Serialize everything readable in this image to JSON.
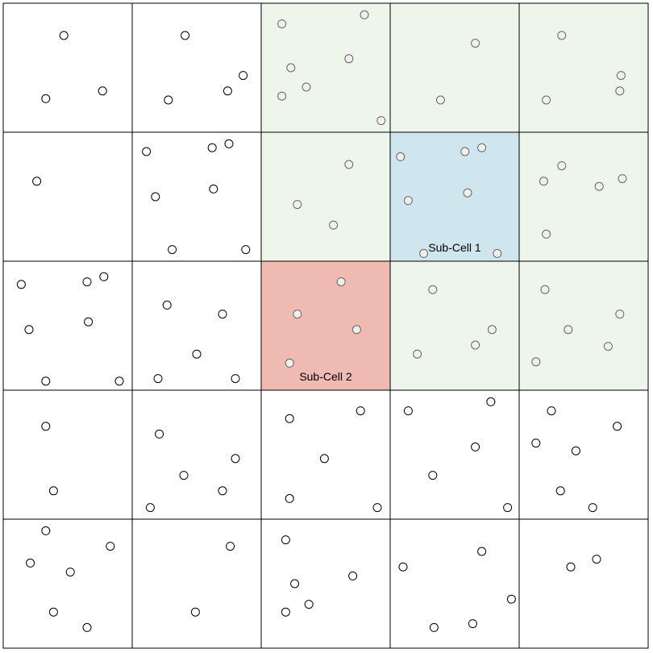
{
  "grid": {
    "rows": 5,
    "cols": 5,
    "cells": [
      {
        "row": 0,
        "col": 0,
        "shade": "none",
        "label": "",
        "points": [
          [
            0.47,
            0.25
          ],
          [
            0.33,
            0.74
          ],
          [
            0.77,
            0.68
          ]
        ]
      },
      {
        "row": 0,
        "col": 1,
        "shade": "none",
        "label": "",
        "points": [
          [
            0.41,
            0.25
          ],
          [
            0.28,
            0.75
          ],
          [
            0.74,
            0.68
          ],
          [
            0.86,
            0.56
          ]
        ]
      },
      {
        "row": 0,
        "col": 2,
        "shade": "neighbor",
        "label": "",
        "points": [
          [
            0.16,
            0.16
          ],
          [
            0.8,
            0.09
          ],
          [
            0.23,
            0.5
          ],
          [
            0.68,
            0.43
          ],
          [
            0.35,
            0.65
          ],
          [
            0.16,
            0.72
          ],
          [
            0.93,
            0.91
          ]
        ]
      },
      {
        "row": 0,
        "col": 3,
        "shade": "neighbor",
        "label": "",
        "points": [
          [
            0.66,
            0.31
          ],
          [
            0.39,
            0.75
          ]
        ]
      },
      {
        "row": 0,
        "col": 4,
        "shade": "neighbor",
        "label": "",
        "points": [
          [
            0.33,
            0.25
          ],
          [
            0.78,
            0.68
          ],
          [
            0.21,
            0.75
          ],
          [
            0.79,
            0.56
          ]
        ]
      },
      {
        "row": 1,
        "col": 0,
        "shade": "none",
        "label": "",
        "points": [
          [
            0.26,
            0.38
          ]
        ]
      },
      {
        "row": 1,
        "col": 1,
        "shade": "none",
        "label": "",
        "points": [
          [
            0.11,
            0.15
          ],
          [
            0.62,
            0.12
          ],
          [
            0.75,
            0.09
          ],
          [
            0.18,
            0.5
          ],
          [
            0.63,
            0.44
          ],
          [
            0.31,
            0.91
          ],
          [
            0.88,
            0.91
          ]
        ]
      },
      {
        "row": 1,
        "col": 2,
        "shade": "neighbor",
        "label": "",
        "points": [
          [
            0.68,
            0.25
          ],
          [
            0.28,
            0.56
          ],
          [
            0.56,
            0.72
          ]
        ]
      },
      {
        "row": 1,
        "col": 3,
        "shade": "subcell1",
        "label": "Sub-Cell 1",
        "points": [
          [
            0.08,
            0.19
          ],
          [
            0.58,
            0.15
          ],
          [
            0.71,
            0.12
          ],
          [
            0.14,
            0.53
          ],
          [
            0.6,
            0.47
          ],
          [
            0.26,
            0.94
          ],
          [
            0.83,
            0.94
          ]
        ]
      },
      {
        "row": 1,
        "col": 4,
        "shade": "neighbor",
        "label": "",
        "points": [
          [
            0.33,
            0.26
          ],
          [
            0.19,
            0.38
          ],
          [
            0.62,
            0.42
          ],
          [
            0.8,
            0.36
          ],
          [
            0.21,
            0.79
          ]
        ]
      },
      {
        "row": 2,
        "col": 0,
        "shade": "none",
        "label": "",
        "points": [
          [
            0.14,
            0.18
          ],
          [
            0.65,
            0.16
          ],
          [
            0.78,
            0.12
          ],
          [
            0.2,
            0.53
          ],
          [
            0.66,
            0.47
          ],
          [
            0.33,
            0.93
          ],
          [
            0.9,
            0.93
          ]
        ]
      },
      {
        "row": 2,
        "col": 1,
        "shade": "none",
        "label": "",
        "points": [
          [
            0.27,
            0.34
          ],
          [
            0.7,
            0.41
          ],
          [
            0.5,
            0.72
          ],
          [
            0.2,
            0.91
          ],
          [
            0.8,
            0.91
          ]
        ]
      },
      {
        "row": 2,
        "col": 2,
        "shade": "subcell2",
        "label": "Sub-Cell 2",
        "points": [
          [
            0.62,
            0.16
          ],
          [
            0.28,
            0.41
          ],
          [
            0.74,
            0.53
          ],
          [
            0.22,
            0.79
          ]
        ]
      },
      {
        "row": 2,
        "col": 3,
        "shade": "neighbor",
        "label": "",
        "points": [
          [
            0.33,
            0.22
          ],
          [
            0.79,
            0.53
          ],
          [
            0.66,
            0.65
          ],
          [
            0.21,
            0.72
          ]
        ]
      },
      {
        "row": 2,
        "col": 4,
        "shade": "neighbor",
        "label": "",
        "points": [
          [
            0.2,
            0.22
          ],
          [
            0.78,
            0.41
          ],
          [
            0.38,
            0.53
          ],
          [
            0.69,
            0.66
          ],
          [
            0.13,
            0.78
          ]
        ]
      },
      {
        "row": 3,
        "col": 0,
        "shade": "none",
        "label": "",
        "points": [
          [
            0.33,
            0.28
          ],
          [
            0.39,
            0.78
          ]
        ]
      },
      {
        "row": 3,
        "col": 1,
        "shade": "none",
        "label": "",
        "points": [
          [
            0.21,
            0.34
          ],
          [
            0.8,
            0.53
          ],
          [
            0.4,
            0.66
          ],
          [
            0.7,
            0.78
          ],
          [
            0.14,
            0.91
          ]
        ]
      },
      {
        "row": 3,
        "col": 2,
        "shade": "none",
        "label": "",
        "points": [
          [
            0.22,
            0.22
          ],
          [
            0.77,
            0.16
          ],
          [
            0.49,
            0.53
          ],
          [
            0.22,
            0.84
          ],
          [
            0.9,
            0.91
          ]
        ]
      },
      {
        "row": 3,
        "col": 3,
        "shade": "none",
        "label": "",
        "points": [
          [
            0.14,
            0.16
          ],
          [
            0.78,
            0.09
          ],
          [
            0.66,
            0.44
          ],
          [
            0.33,
            0.66
          ],
          [
            0.91,
            0.91
          ]
        ]
      },
      {
        "row": 3,
        "col": 4,
        "shade": "none",
        "label": "",
        "points": [
          [
            0.25,
            0.16
          ],
          [
            0.76,
            0.28
          ],
          [
            0.13,
            0.41
          ],
          [
            0.44,
            0.47
          ],
          [
            0.32,
            0.78
          ],
          [
            0.57,
            0.91
          ]
        ]
      },
      {
        "row": 4,
        "col": 0,
        "shade": "none",
        "label": "",
        "points": [
          [
            0.33,
            0.09
          ],
          [
            0.83,
            0.21
          ],
          [
            0.21,
            0.34
          ],
          [
            0.52,
            0.41
          ],
          [
            0.39,
            0.72
          ],
          [
            0.65,
            0.84
          ]
        ]
      },
      {
        "row": 4,
        "col": 1,
        "shade": "none",
        "label": "",
        "points": [
          [
            0.76,
            0.21
          ],
          [
            0.49,
            0.72
          ]
        ]
      },
      {
        "row": 4,
        "col": 2,
        "shade": "none",
        "label": "",
        "points": [
          [
            0.19,
            0.16
          ],
          [
            0.71,
            0.44
          ],
          [
            0.26,
            0.5
          ],
          [
            0.37,
            0.66
          ],
          [
            0.19,
            0.72
          ]
        ]
      },
      {
        "row": 4,
        "col": 3,
        "shade": "none",
        "label": "",
        "points": [
          [
            0.71,
            0.25
          ],
          [
            0.1,
            0.37
          ],
          [
            0.94,
            0.62
          ],
          [
            0.34,
            0.84
          ],
          [
            0.64,
            0.81
          ]
        ]
      },
      {
        "row": 4,
        "col": 4,
        "shade": "none",
        "label": "",
        "points": [
          [
            0.4,
            0.37
          ],
          [
            0.6,
            0.31
          ]
        ]
      }
    ]
  },
  "colors": {
    "none": "#ffffff",
    "neighbor": "#eef5ea",
    "subcell1": "#d0e6ee",
    "subcell2": "#efbab2",
    "point_fill_plain": "#ffffff",
    "point_fill_shaded": "#f0f0f0",
    "point_stroke_plain": "#000000",
    "point_stroke_shaded": "#666666",
    "grid_line": "#000000"
  }
}
